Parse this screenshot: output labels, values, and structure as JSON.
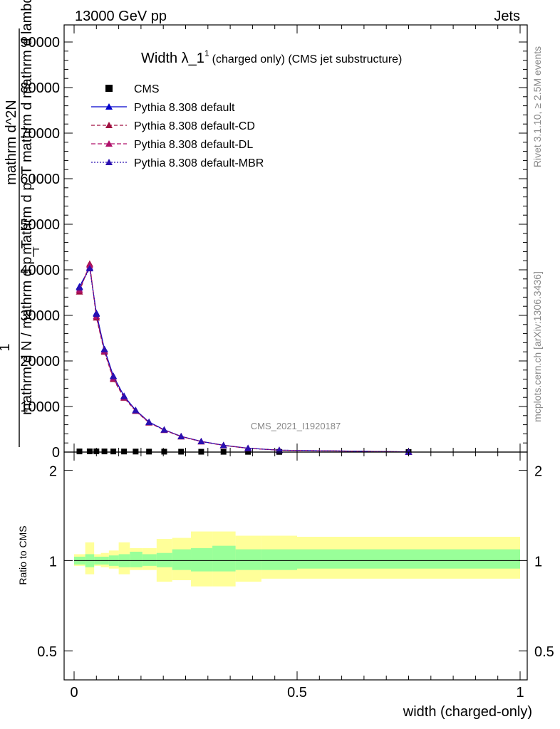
{
  "header": {
    "left": "13000 GeV pp",
    "right": "Jets"
  },
  "title": {
    "main": "Width λ_1",
    "sup": "1",
    "sub": "(charged only) (CMS jet substructure)"
  },
  "watermark": "CMS_2021_I1920187",
  "side_labels": {
    "rivet": "Rivet 3.1.10, ≥ 2.5M events",
    "mcplots": "mcplots.cern.ch [arXiv:1306.3436]"
  },
  "ylabel_main": {
    "numerator_one": "1",
    "denominator": "mathrm d N / mathrm d p_T",
    "numerator_right": "mathrm d^2N",
    "denominator_right": "mathrm d p_T mathrm d mathrm d lambda",
    "t_subscript": "T"
  },
  "ylabel_ratio": "Ratio to CMS",
  "xlabel": "width (charged-only)",
  "colors": {
    "cms": "#000000",
    "default": "#0000cc",
    "cd": "#a01040",
    "dl": "#b0106a",
    "mbr": "#2a10b0",
    "band_inner": "#99ff99",
    "band_outer": "#ffff99"
  },
  "chart_data": [
    {
      "type": "line",
      "panel": "main",
      "xlim": [
        0,
        1
      ],
      "ylim": [
        0,
        90000
      ],
      "x_ticks": [],
      "y_ticks": [
        0,
        10000,
        20000,
        30000,
        40000,
        50000,
        60000,
        70000,
        80000,
        90000
      ],
      "y_tick_labels": [
        "0",
        "10000",
        "20000",
        "30000",
        "40000",
        "50000",
        "60000",
        "70000",
        "80000",
        "90000"
      ],
      "legend": [
        "CMS",
        "Pythia 8.308 default",
        "Pythia 8.308 default-CD",
        "Pythia 8.308 default-DL",
        "Pythia 8.308 default-MBR"
      ],
      "legend_position": "top-left",
      "x": [
        0.012,
        0.035,
        0.05,
        0.068,
        0.088,
        0.112,
        0.138,
        0.168,
        0.202,
        0.24,
        0.285,
        0.335,
        0.39,
        0.46,
        0.75
      ],
      "series": [
        {
          "name": "CMS",
          "marker": "square",
          "values": [
            140,
            150,
            150,
            140,
            130,
            120,
            110,
            100,
            90,
            80,
            70,
            60,
            50,
            40,
            20
          ]
        },
        {
          "name": "Pythia 8.308 default",
          "marker": "triangle",
          "style": "solid",
          "values": [
            36300,
            40500,
            30500,
            22600,
            16700,
            12300,
            9200,
            6600,
            4900,
            3450,
            2350,
            1500,
            850,
            420,
            40
          ]
        },
        {
          "name": "Pythia 8.308 default-CD",
          "marker": "triangle",
          "style": "dashed",
          "values": [
            35200,
            41300,
            29500,
            22000,
            16000,
            11900,
            9000,
            6450,
            4800,
            3400,
            2300,
            1450,
            820,
            400,
            40
          ]
        },
        {
          "name": "Pythia 8.308 default-DL",
          "marker": "triangle",
          "style": "dashed",
          "values": [
            35600,
            41000,
            29800,
            22200,
            16200,
            12000,
            9100,
            6500,
            4850,
            3420,
            2320,
            1470,
            830,
            410,
            40
          ]
        },
        {
          "name": "Pythia 8.308 default-MBR",
          "marker": "triangle",
          "style": "dotted",
          "values": [
            36100,
            40300,
            30300,
            22500,
            16600,
            12200,
            9150,
            6550,
            4880,
            3440,
            2340,
            1490,
            840,
            415,
            40
          ]
        }
      ]
    },
    {
      "type": "area",
      "panel": "ratio",
      "xlim": [
        0,
        1
      ],
      "ylim": [
        0.4,
        2.3
      ],
      "scale": "log",
      "x_ticks": [
        0,
        0.5,
        1
      ],
      "x_tick_labels": [
        "0",
        "0.5",
        "1"
      ],
      "y_ticks": [
        0.5,
        1,
        2
      ],
      "y_tick_labels": [
        "0.5",
        "1",
        "2"
      ],
      "reference": 1,
      "bin_edges": [
        0,
        0.025,
        0.045,
        0.06,
        0.078,
        0.1,
        0.125,
        0.153,
        0.185,
        0.22,
        0.262,
        0.31,
        0.362,
        0.42,
        0.5,
        1.0
      ],
      "inner_band": [
        [
          0.97,
          1.03
        ],
        [
          0.95,
          1.05
        ],
        [
          0.97,
          1.03
        ],
        [
          0.97,
          1.03
        ],
        [
          0.96,
          1.04
        ],
        [
          0.95,
          1.05
        ],
        [
          0.95,
          1.07
        ],
        [
          0.96,
          1.05
        ],
        [
          0.95,
          1.06
        ],
        [
          0.93,
          1.09
        ],
        [
          0.92,
          1.1
        ],
        [
          0.92,
          1.12
        ],
        [
          0.93,
          1.09
        ],
        [
          0.93,
          1.09
        ],
        [
          0.94,
          1.09
        ]
      ],
      "outer_band": [
        [
          0.96,
          1.05
        ],
        [
          0.9,
          1.15
        ],
        [
          0.96,
          1.05
        ],
        [
          0.95,
          1.06
        ],
        [
          0.94,
          1.08
        ],
        [
          0.9,
          1.15
        ],
        [
          0.93,
          1.1
        ],
        [
          0.93,
          1.1
        ],
        [
          0.85,
          1.18
        ],
        [
          0.86,
          1.19
        ],
        [
          0.82,
          1.25
        ],
        [
          0.82,
          1.25
        ],
        [
          0.85,
          1.21
        ],
        [
          0.87,
          1.21
        ],
        [
          0.87,
          1.2
        ]
      ]
    }
  ]
}
